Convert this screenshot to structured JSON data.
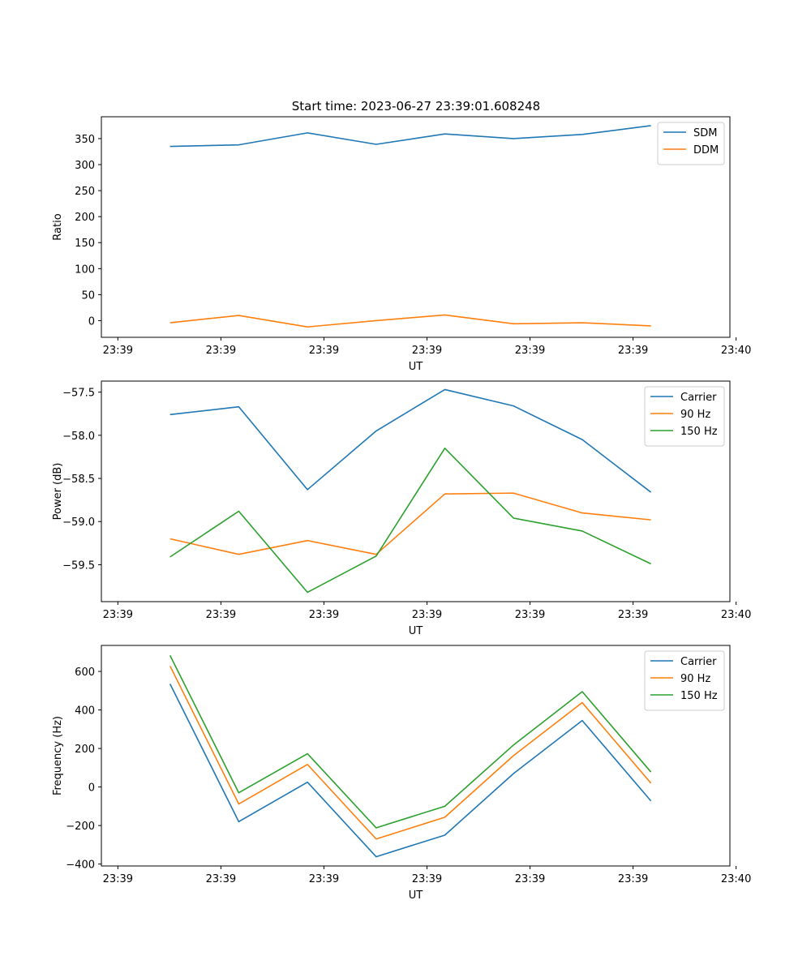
{
  "figure": {
    "title": "Start time: 2023-06-27 23:39:01.608248"
  },
  "chart_data": [
    {
      "type": "line",
      "xlabel": "UT",
      "ylabel": "Ratio",
      "xlim": [
        0,
        9.15
      ],
      "ylim": [
        -32,
        392
      ],
      "x_ticks": [
        {
          "value": 0.24,
          "label": "23:39"
        },
        {
          "value": 1.74,
          "label": "23:39"
        },
        {
          "value": 3.24,
          "label": "23:39"
        },
        {
          "value": 4.74,
          "label": "23:39"
        },
        {
          "value": 6.24,
          "label": "23:39"
        },
        {
          "value": 7.74,
          "label": "23:39"
        },
        {
          "value": 9.24,
          "label": "23:40"
        }
      ],
      "y_ticks": [
        {
          "value": 0,
          "label": "0"
        },
        {
          "value": 50,
          "label": "50"
        },
        {
          "value": 100,
          "label": "100"
        },
        {
          "value": 150,
          "label": "150"
        },
        {
          "value": 200,
          "label": "200"
        },
        {
          "value": 250,
          "label": "250"
        },
        {
          "value": 300,
          "label": "300"
        },
        {
          "value": 350,
          "label": "350"
        }
      ],
      "legend_location": "top-right",
      "x": [
        1,
        2,
        3,
        4,
        5,
        6,
        7,
        8
      ],
      "series": [
        {
          "name": "SDM",
          "color": "#1f77b4",
          "values": [
            335,
            338,
            361,
            339,
            359,
            350,
            358,
            375
          ]
        },
        {
          "name": "DDM",
          "color": "#ff7f0e",
          "values": [
            -4,
            10,
            -12,
            0,
            11,
            -6,
            -4,
            -10
          ]
        }
      ]
    },
    {
      "type": "line",
      "xlabel": "UT",
      "ylabel": "Power (dB)",
      "xlim": [
        0,
        9.15
      ],
      "ylim": [
        -59.928,
        -57.372
      ],
      "x_ticks": [
        {
          "value": 0.24,
          "label": "23:39"
        },
        {
          "value": 1.74,
          "label": "23:39"
        },
        {
          "value": 3.24,
          "label": "23:39"
        },
        {
          "value": 4.74,
          "label": "23:39"
        },
        {
          "value": 6.24,
          "label": "23:39"
        },
        {
          "value": 7.74,
          "label": "23:39"
        },
        {
          "value": 9.24,
          "label": "23:40"
        }
      ],
      "y_ticks": [
        {
          "value": -59.5,
          "label": "−59.5"
        },
        {
          "value": -59.0,
          "label": "−59.0"
        },
        {
          "value": -58.5,
          "label": "−58.5"
        },
        {
          "value": -58.0,
          "label": "−58.0"
        },
        {
          "value": -57.5,
          "label": "−57.5"
        }
      ],
      "legend_location": "top-right",
      "x": [
        1,
        2,
        3,
        4,
        5,
        6,
        7,
        8
      ],
      "series": [
        {
          "name": "Carrier",
          "color": "#1f77b4",
          "values": [
            -57.76,
            -57.67,
            -58.63,
            -57.95,
            -57.47,
            -57.66,
            -58.05,
            -58.66
          ]
        },
        {
          "name": "90 Hz",
          "color": "#ff7f0e",
          "values": [
            -59.2,
            -59.38,
            -59.22,
            -59.38,
            -58.68,
            -58.67,
            -58.9,
            -58.98
          ]
        },
        {
          "name": "150 Hz",
          "color": "#2ca02c",
          "values": [
            -59.41,
            -58.88,
            -59.82,
            -59.4,
            -58.15,
            -58.96,
            -59.11,
            -59.49
          ]
        }
      ]
    },
    {
      "type": "line",
      "xlabel": "UT",
      "ylabel": "Frequency (Hz)",
      "xlim": [
        0,
        9.15
      ],
      "ylim": [
        -410,
        735
      ],
      "x_ticks": [
        {
          "value": 0.24,
          "label": "23:39"
        },
        {
          "value": 1.74,
          "label": "23:39"
        },
        {
          "value": 3.24,
          "label": "23:39"
        },
        {
          "value": 4.74,
          "label": "23:39"
        },
        {
          "value": 6.24,
          "label": "23:39"
        },
        {
          "value": 7.74,
          "label": "23:39"
        },
        {
          "value": 9.24,
          "label": "23:40"
        }
      ],
      "y_ticks": [
        {
          "value": -400,
          "label": "−400"
        },
        {
          "value": -200,
          "label": "−200"
        },
        {
          "value": 0,
          "label": "0"
        },
        {
          "value": 200,
          "label": "200"
        },
        {
          "value": 400,
          "label": "400"
        },
        {
          "value": 600,
          "label": "600"
        }
      ],
      "legend_location": "top-right",
      "x": [
        1,
        2,
        3,
        4,
        5,
        6,
        7,
        8
      ],
      "series": [
        {
          "name": "Carrier",
          "color": "#1f77b4",
          "values": [
            535,
            -180,
            25,
            -362,
            -250,
            70,
            345,
            -72
          ]
        },
        {
          "name": "90 Hz",
          "color": "#ff7f0e",
          "values": [
            628,
            -88,
            117,
            -270,
            -157,
            163,
            438,
            20
          ]
        },
        {
          "name": "150 Hz",
          "color": "#2ca02c",
          "values": [
            683,
            -30,
            173,
            -212,
            -100,
            218,
            495,
            78
          ]
        }
      ]
    }
  ]
}
